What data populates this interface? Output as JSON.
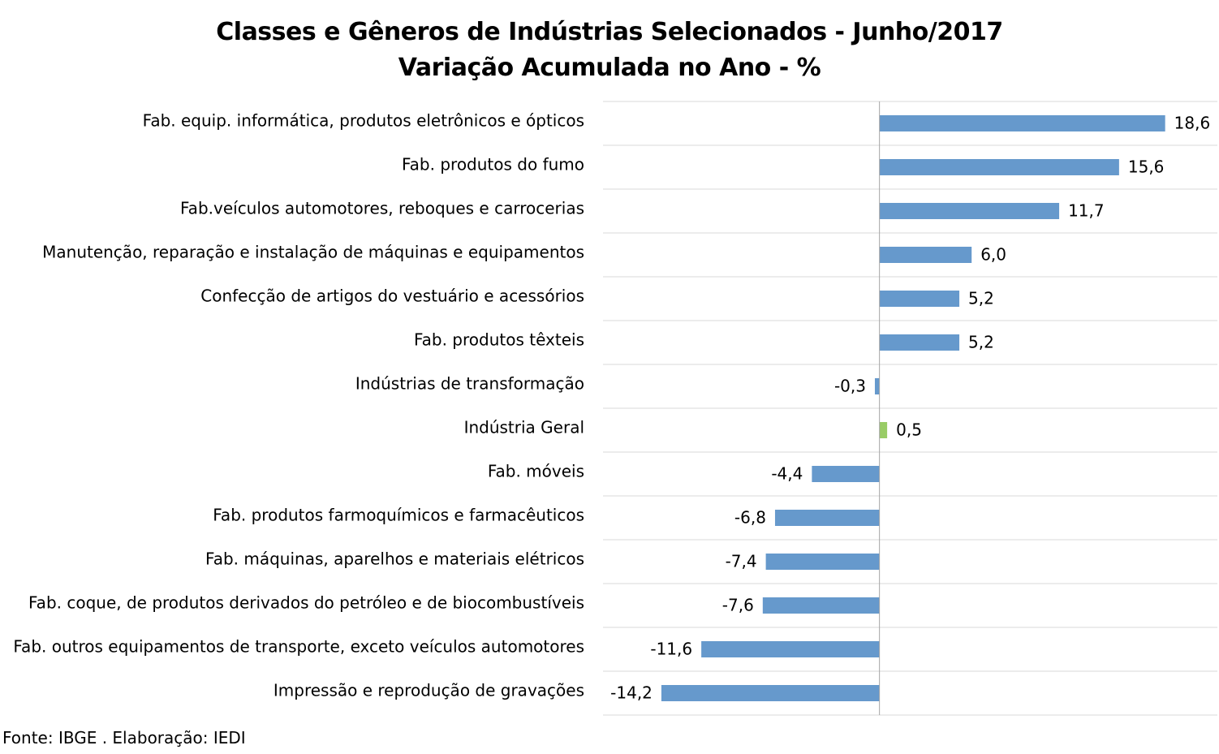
{
  "chart_data": {
    "type": "bar",
    "orientation": "horizontal",
    "title": "Classes e Gêneros de Indústrias Selecionados - Junho/2017",
    "subtitle": "Variação Acumulada no Ano - %",
    "categories": [
      "Fab. equip. informática, produtos eletrônicos e ópticos",
      "Fab. produtos do fumo",
      "Fab.veículos automotores, reboques e carrocerias",
      "Manutenção, reparação e instalação de máquinas e equipamentos",
      "Confecção de artigos do vestuário e acessórios",
      "Fab. produtos têxteis",
      "Indústrias de transformação",
      "Indústria Geral",
      "Fab. móveis",
      "Fab. produtos farmoquímicos e farmacêuticos",
      "Fab. máquinas, aparelhos e materiais elétricos",
      "Fab. coque, de produtos derivados do petróleo e de biocombustíveis",
      "Fab. outros equipamentos de transporte, exceto veículos automotores",
      "Impressão e reprodução de gravações"
    ],
    "values": [
      18.6,
      15.6,
      11.7,
      6.0,
      5.2,
      5.2,
      -0.3,
      0.5,
      -4.4,
      -6.8,
      -7.4,
      -7.6,
      -11.6,
      -14.2
    ],
    "value_labels": [
      "18,6",
      "15,6",
      "11,7",
      "6,0",
      "5,2",
      "5,2",
      "-0,3",
      "0,5",
      "-4,4",
      "-6,8",
      "-7,4",
      "-7,6",
      "-11,6",
      "-14,2"
    ],
    "highlight_category": "Indústria Geral",
    "colors": {
      "default": "#6699CC",
      "highlight": "#99CC66",
      "gridline": "#D9D9D9",
      "axis": "#A6A6A6"
    },
    "xlim": [
      -18,
      22
    ],
    "grid": true,
    "legend": "none"
  },
  "source_note": "Fonte: IBGE . Elaboração: IEDI"
}
